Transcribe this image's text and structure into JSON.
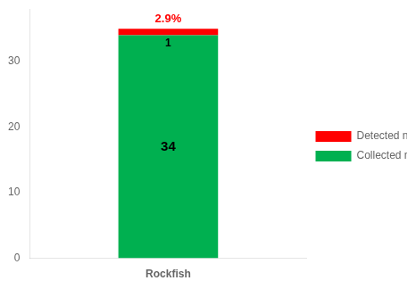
{
  "chart_data": {
    "type": "bar",
    "stacked": true,
    "categories": [
      "Rockfish"
    ],
    "series": [
      {
        "name": "Collected number",
        "color": "#00b050",
        "values": [
          34
        ]
      },
      {
        "name": "Detected number",
        "color": "#ff0000",
        "values": [
          1
        ]
      }
    ],
    "annotations": [
      {
        "text": "2.9%",
        "category": "Rockfish",
        "color": "#ff0000"
      }
    ],
    "ylim": [
      0,
      38
    ],
    "yticks": [
      0,
      10,
      20,
      30
    ],
    "grid": false,
    "legend": "right",
    "data_labels": true
  }
}
